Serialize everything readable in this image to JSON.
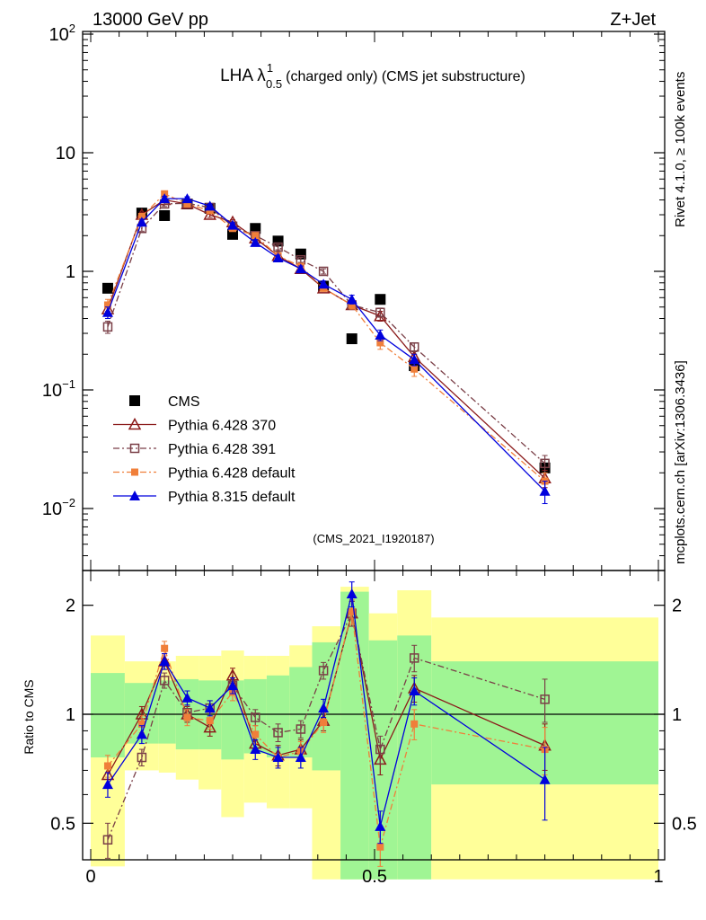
{
  "chart_data": [
    {
      "type": "scatter",
      "panel": "main",
      "header_left": "13000 GeV pp",
      "header_right": "Z+Jet",
      "title_main": "LHA λ",
      "title_sup": "1",
      "title_sub": "0.5",
      "title_rest": "(charged only) (CMS jet substructure)",
      "yscale": "log",
      "ylim": [
        0.003,
        100
      ],
      "xlim": [
        0,
        1
      ],
      "y_ticks": [
        {
          "value": 100,
          "base": "10",
          "exp": "2"
        },
        {
          "value": 10,
          "base": "10",
          "exp": ""
        },
        {
          "value": 1,
          "base": "1",
          "exp": ""
        },
        {
          "value": 0.1,
          "base": "10",
          "exp": "−1"
        },
        {
          "value": 0.01,
          "base": "10",
          "exp": "−2"
        }
      ],
      "legend_position": "bottom-left",
      "analysis_label": "(CMS_2021_I1920187)",
      "side_label_top": "Rivet 4.1.0, ≥ 100k events",
      "side_label_bottom": "mcplots.cern.ch [arXiv:1306.3436]",
      "series": [
        {
          "name": "CMS",
          "color": "#000000",
          "marker": "square-filled",
          "line": "none",
          "x": [
            0.03,
            0.09,
            0.13,
            0.17,
            0.21,
            0.25,
            0.29,
            0.33,
            0.37,
            0.41,
            0.46,
            0.51,
            0.57,
            0.8
          ],
          "y": [
            0.72,
            3.1,
            2.95,
            3.7,
            3.4,
            2.05,
            2.3,
            1.8,
            1.4,
            0.75,
            0.27,
            0.58,
            0.16,
            0.022
          ],
          "err": [
            0,
            0,
            0,
            0,
            0,
            0,
            0,
            0,
            0,
            0,
            0,
            0,
            0,
            0
          ]
        },
        {
          "name": "Pythia 6.428 370",
          "color": "#8b1a1a",
          "marker": "triangle-open",
          "line": "solid",
          "x": [
            0.03,
            0.09,
            0.13,
            0.17,
            0.21,
            0.25,
            0.29,
            0.33,
            0.37,
            0.41,
            0.46,
            0.51,
            0.57,
            0.8
          ],
          "y": [
            0.48,
            3.0,
            4.0,
            3.7,
            3.0,
            2.6,
            1.9,
            1.35,
            1.05,
            0.72,
            0.52,
            0.42,
            0.19,
            0.018
          ],
          "err": [
            0.05,
            0.15,
            0.2,
            0.15,
            0.15,
            0.12,
            0.1,
            0.07,
            0.06,
            0.04,
            0.04,
            0.04,
            0.02,
            0.003
          ]
        },
        {
          "name": "Pythia 6.428 391",
          "color": "#7a3f47",
          "marker": "square-open",
          "line": "dashdot",
          "x": [
            0.03,
            0.09,
            0.13,
            0.17,
            0.21,
            0.25,
            0.29,
            0.33,
            0.37,
            0.41,
            0.46,
            0.51,
            0.57,
            0.8
          ],
          "y": [
            0.34,
            2.3,
            3.7,
            3.75,
            3.45,
            2.4,
            2.0,
            1.6,
            1.25,
            1.0,
            0.52,
            0.45,
            0.23,
            0.024
          ],
          "err": [
            0.04,
            0.12,
            0.18,
            0.15,
            0.15,
            0.12,
            0.1,
            0.08,
            0.06,
            0.05,
            0.04,
            0.04,
            0.02,
            0.004
          ]
        },
        {
          "name": "Pythia 6.428 default",
          "color": "#f07f3a",
          "marker": "square-filled-small",
          "line": "dashdot",
          "x": [
            0.03,
            0.09,
            0.13,
            0.17,
            0.21,
            0.25,
            0.29,
            0.33,
            0.37,
            0.41,
            0.46,
            0.51,
            0.57,
            0.8
          ],
          "y": [
            0.52,
            2.9,
            4.5,
            3.7,
            3.25,
            2.3,
            2.0,
            1.35,
            1.1,
            0.72,
            0.52,
            0.25,
            0.15,
            0.017
          ],
          "err": [
            0.06,
            0.15,
            0.2,
            0.15,
            0.15,
            0.12,
            0.1,
            0.07,
            0.06,
            0.04,
            0.04,
            0.03,
            0.02,
            0.003
          ]
        },
        {
          "name": "Pythia 8.315 default",
          "color": "#0000dd",
          "marker": "triangle-filled",
          "line": "solid",
          "x": [
            0.03,
            0.09,
            0.13,
            0.17,
            0.21,
            0.25,
            0.29,
            0.33,
            0.37,
            0.41,
            0.46,
            0.51,
            0.57,
            0.8
          ],
          "y": [
            0.45,
            2.6,
            4.1,
            4.1,
            3.55,
            2.45,
            1.75,
            1.3,
            1.05,
            0.78,
            0.58,
            0.29,
            0.18,
            0.014
          ],
          "err": [
            0.05,
            0.15,
            0.2,
            0.15,
            0.15,
            0.12,
            0.1,
            0.07,
            0.06,
            0.05,
            0.05,
            0.03,
            0.02,
            0.003
          ]
        }
      ]
    },
    {
      "type": "scatter",
      "panel": "ratio",
      "ylabel": "Ratio to CMS",
      "yscale": "log",
      "ylim": [
        0.35,
        2.35
      ],
      "xlim": [
        0,
        1
      ],
      "y_ticks": [
        {
          "value": 2,
          "label": "2"
        },
        {
          "value": 1,
          "label": "1"
        },
        {
          "value": 0.5,
          "label": "0.5"
        }
      ],
      "x_ticks": [
        {
          "value": 0,
          "label": "0"
        },
        {
          "value": 0.5,
          "label": "0.5"
        },
        {
          "value": 1,
          "label": "1"
        }
      ],
      "bands": {
        "edges": [
          0,
          0.06,
          0.12,
          0.15,
          0.19,
          0.23,
          0.27,
          0.31,
          0.35,
          0.39,
          0.44,
          0.49,
          0.54,
          0.6,
          1.0
        ],
        "inner_lo": [
          0.76,
          0.83,
          0.83,
          0.8,
          0.8,
          0.75,
          0.78,
          0.76,
          0.76,
          0.7,
          0.35,
          0.35,
          0.35,
          0.64
        ],
        "inner_hi": [
          1.3,
          1.22,
          1.24,
          1.25,
          1.24,
          1.24,
          1.25,
          1.28,
          1.35,
          1.58,
          2.18,
          1.6,
          1.65,
          1.4
        ],
        "outer_lo": [
          0.38,
          0.7,
          0.69,
          0.66,
          0.62,
          0.52,
          0.57,
          0.55,
          0.55,
          0.35,
          0.35,
          0.35,
          0.35,
          0.35
        ],
        "outer_hi": [
          1.65,
          1.4,
          1.4,
          1.45,
          1.45,
          1.5,
          1.45,
          1.45,
          1.55,
          1.75,
          2.25,
          1.9,
          2.2,
          1.85
        ],
        "inner_color": "#a0f594",
        "outer_color": "#ffff99"
      },
      "series": [
        {
          "name": "Pythia 6.428 370",
          "color": "#8b1a1a",
          "marker": "triangle-open",
          "line": "solid",
          "x": [
            0.03,
            0.09,
            0.13,
            0.17,
            0.21,
            0.25,
            0.29,
            0.33,
            0.37,
            0.41,
            0.46,
            0.51,
            0.57,
            0.8
          ],
          "y": [
            0.68,
            1.0,
            1.4,
            1.0,
            0.92,
            1.28,
            0.83,
            0.77,
            0.8,
            0.96,
            1.9,
            0.75,
            1.18,
            0.82
          ],
          "err": [
            0.05,
            0.05,
            0.07,
            0.05,
            0.05,
            0.06,
            0.05,
            0.05,
            0.05,
            0.06,
            0.15,
            0.07,
            0.1,
            0.12
          ]
        },
        {
          "name": "Pythia 6.428 391",
          "color": "#7a3f47",
          "marker": "square-open",
          "line": "dashdot",
          "x": [
            0.03,
            0.09,
            0.13,
            0.17,
            0.21,
            0.25,
            0.29,
            0.33,
            0.37,
            0.41,
            0.46,
            0.51,
            0.57,
            0.8
          ],
          "y": [
            0.45,
            0.76,
            1.24,
            1.01,
            1.04,
            1.2,
            0.98,
            0.89,
            0.91,
            1.32,
            1.9,
            0.8,
            1.43,
            1.1
          ],
          "err": [
            0.05,
            0.04,
            0.06,
            0.05,
            0.05,
            0.06,
            0.05,
            0.05,
            0.05,
            0.07,
            0.15,
            0.07,
            0.12,
            0.15
          ]
        },
        {
          "name": "Pythia 6.428 default",
          "color": "#f07f3a",
          "marker": "square-filled-small",
          "line": "dashdot",
          "x": [
            0.03,
            0.09,
            0.13,
            0.17,
            0.21,
            0.25,
            0.29,
            0.33,
            0.37,
            0.41,
            0.46,
            0.51,
            0.57,
            0.8
          ],
          "y": [
            0.72,
            0.94,
            1.52,
            0.98,
            0.96,
            1.15,
            0.88,
            0.76,
            0.79,
            0.95,
            1.92,
            0.43,
            0.94,
            0.8
          ],
          "err": [
            0.05,
            0.05,
            0.07,
            0.05,
            0.05,
            0.06,
            0.05,
            0.05,
            0.05,
            0.06,
            0.15,
            0.05,
            0.09,
            0.12
          ]
        },
        {
          "name": "Pythia 8.315 default",
          "color": "#0000dd",
          "marker": "triangle-filled",
          "line": "solid",
          "x": [
            0.03,
            0.09,
            0.13,
            0.17,
            0.21,
            0.25,
            0.29,
            0.33,
            0.37,
            0.41,
            0.46,
            0.51,
            0.57,
            0.8
          ],
          "y": [
            0.64,
            0.88,
            1.4,
            1.11,
            1.04,
            1.2,
            0.8,
            0.76,
            0.76,
            1.04,
            2.15,
            0.49,
            1.16,
            0.66
          ],
          "err": [
            0.05,
            0.05,
            0.07,
            0.05,
            0.05,
            0.06,
            0.05,
            0.05,
            0.05,
            0.06,
            0.17,
            0.05,
            0.1,
            0.15
          ]
        }
      ]
    }
  ]
}
